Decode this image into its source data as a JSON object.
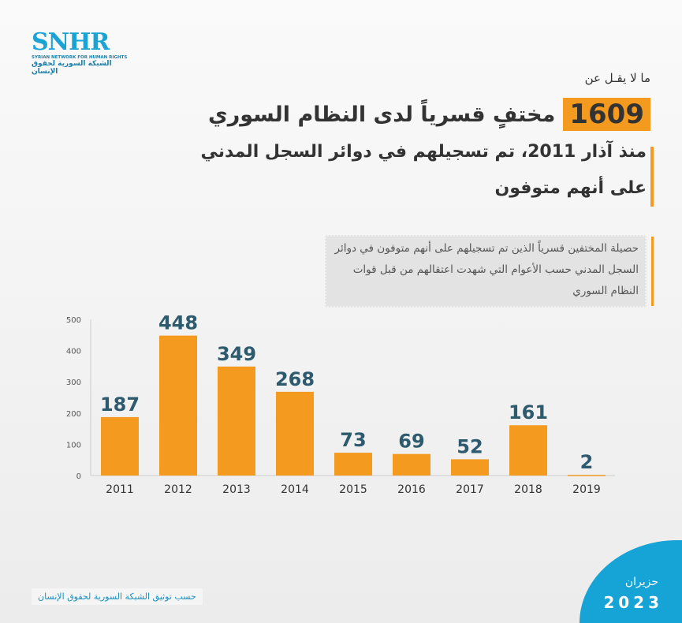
{
  "logo": {
    "name": "SNHR",
    "english": "SYRIAN NETWORK FOR HUMAN RIGHTS",
    "arabic": "الشبكة السورية لحقوق الإنسان"
  },
  "header": {
    "pre": "ما لا يقـل عن",
    "number": "1609",
    "line1": "مختفٍ قسرياً لدى النظام السوري",
    "line2": "منذ آذار 2011، تم تسجيلهم في دوائر السجل المدني",
    "line3": "على أنهم متوفون"
  },
  "note": "حصيلة المختفين قسرياً الذين تم تسجيلهم على أنهم متوفون في دوائر السجل المدني حسب الأعوام التي شهدت اعتقالهم من قبل قوات النظام السوري",
  "source": "حسب توثيق الشبكة السورية لحقوق الإنسان",
  "date": {
    "month": "حزيران",
    "year": "2023"
  },
  "colors": {
    "bar": "#f39a1f",
    "label": "#2e5a6e",
    "accent": "#16a3d6"
  },
  "chart_data": {
    "type": "bar",
    "categories": [
      "2011",
      "2012",
      "2013",
      "2014",
      "2015",
      "2016",
      "2017",
      "2018",
      "2019"
    ],
    "values": [
      187,
      448,
      349,
      268,
      73,
      69,
      52,
      161,
      2
    ],
    "ylim": [
      0,
      500
    ],
    "yticks": [
      0,
      100,
      200,
      300,
      400,
      500
    ],
    "title": "",
    "xlabel": "",
    "ylabel": "",
    "grid": false
  }
}
